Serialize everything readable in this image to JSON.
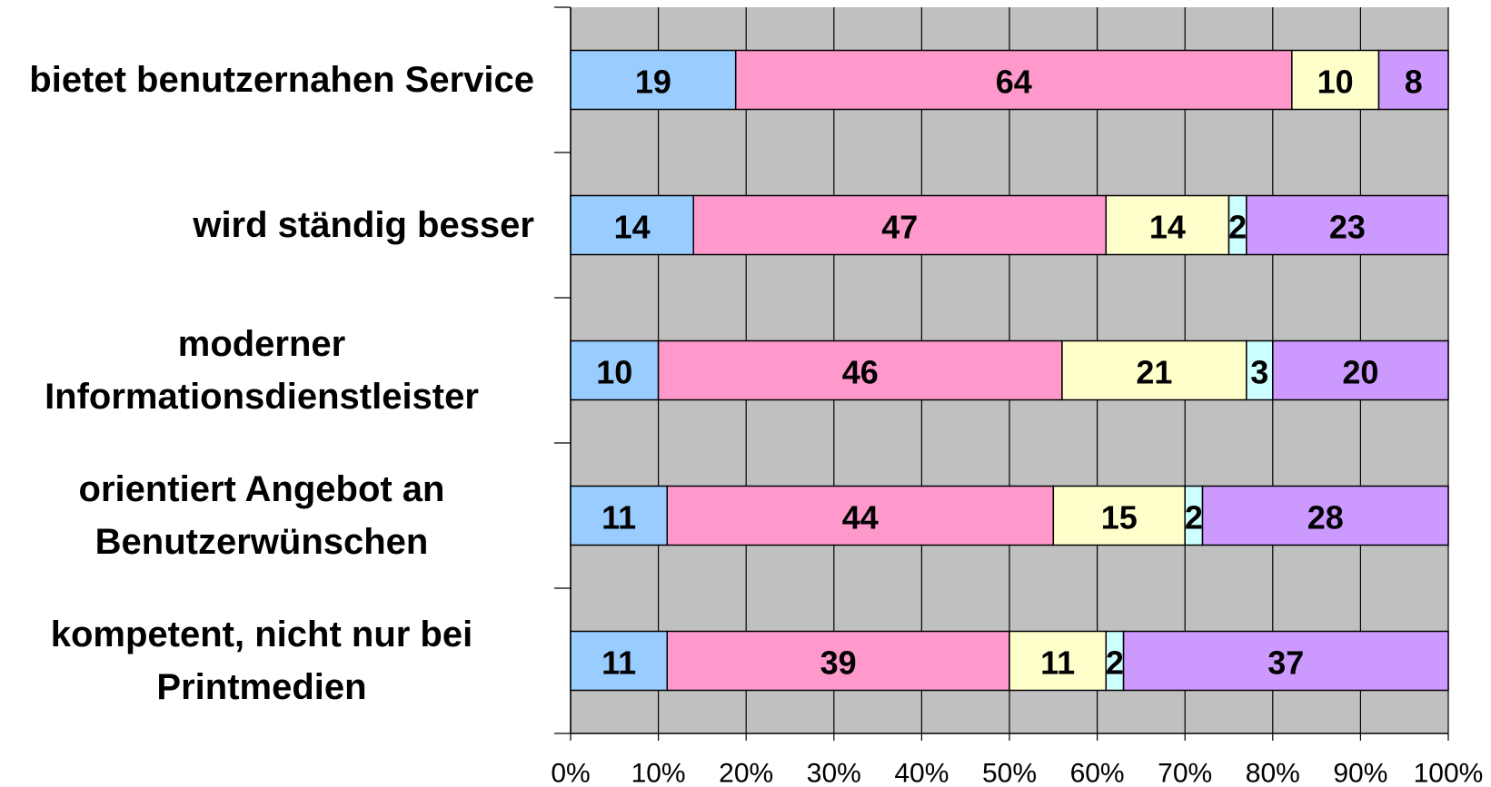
{
  "chart_data": {
    "type": "stacked_bar_100",
    "categories": [
      "bietet benutzernahen Service",
      "wird ständig besser",
      "moderner Informationsdienstleister",
      "orientiert Angebot an Benutzerwünschen",
      "kompetent, nicht nur bei Printmedien"
    ],
    "series": [
      {
        "color": "#99ccff",
        "values": [
          19,
          14,
          10,
          11,
          11
        ]
      },
      {
        "color": "#ff99cc",
        "values": [
          64,
          47,
          46,
          44,
          39
        ]
      },
      {
        "color": "#ffffcc",
        "values": [
          10,
          14,
          21,
          15,
          11
        ]
      },
      {
        "color": "#ccffff",
        "values": [
          null,
          2,
          3,
          2,
          2
        ]
      },
      {
        "color": "#cc99ff",
        "values": [
          8,
          23,
          20,
          28,
          37
        ]
      }
    ],
    "xlim": [
      0,
      100
    ],
    "xticks": [
      {
        "value": 0,
        "label": "0%"
      },
      {
        "value": 10,
        "label": "10%"
      },
      {
        "value": 20,
        "label": "20%"
      },
      {
        "value": 30,
        "label": "30%"
      },
      {
        "value": 40,
        "label": "40%"
      },
      {
        "value": 50,
        "label": "50%"
      },
      {
        "value": 60,
        "label": "60%"
      },
      {
        "value": 70,
        "label": "70%"
      },
      {
        "value": 80,
        "label": "80%"
      },
      {
        "value": 90,
        "label": "90%"
      },
      {
        "value": 100,
        "label": "100%"
      }
    ],
    "grid": true,
    "plot_background": "#c0c0c0"
  }
}
